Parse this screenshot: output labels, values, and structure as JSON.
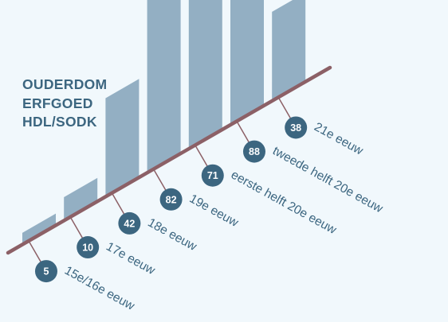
{
  "title": [
    "OUDERDOM",
    "ERFGOED",
    "HDL/SODK"
  ],
  "colors": {
    "background": "#f1f8fc",
    "bar": "#93afc3",
    "baseline": "#8c6066",
    "badge": "#3c6680",
    "badge_text": "#ffffff",
    "label": "#3c6680",
    "title": "#3c6680"
  },
  "chart_data": {
    "type": "bar",
    "title": "",
    "categories": [
      "15e/16e eeuw",
      "17e eeuw",
      "18e eeuw",
      "19e eeuw",
      "eerste helft 20e eeuw",
      "tweede helft 20e eeuw",
      "21e eeuw"
    ],
    "values": [
      5,
      10,
      42,
      82,
      71,
      88,
      38
    ],
    "value_labels": [
      "5",
      "10",
      "42",
      "82",
      "71",
      "88",
      "38"
    ],
    "xlabel": "",
    "ylabel": "",
    "ylim": [
      0,
      100
    ],
    "grid": false,
    "legend": "none"
  }
}
